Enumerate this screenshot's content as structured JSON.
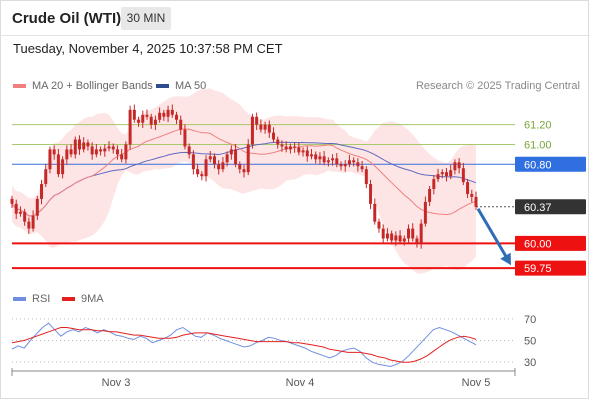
{
  "header": {
    "title": "Crude Oil (WTI)",
    "timeframe": "30 MIN",
    "datetime": "Tuesday, November 4, 2025 10:37:58 PM CET"
  },
  "legend": {
    "ma20": "MA 20 + Bollinger Bands",
    "ma50": "MA 50",
    "rsi": "RSI",
    "rsi_ma": "9MA",
    "copyright": "Research © 2025 Trading Central"
  },
  "colors": {
    "candle": "#c62828",
    "ma20": "#f08080",
    "bollinger_fill": "#fde2e2",
    "ma50": "#5c6bc0",
    "resistance_line": "#a5c96b",
    "pivot_line": "#3a6fd8",
    "support_line": "#ee1111",
    "current_price": "#333333",
    "rsi_line": "#6f8fe0",
    "rsi_ma_line": "#e32020"
  },
  "chart_data": [
    {
      "type": "candlestick",
      "ylim": [
        59.6,
        61.5
      ],
      "x_labels": [
        "Nov 3",
        "Nov 4",
        "Nov 5"
      ],
      "levels": [
        {
          "value": 61.2,
          "label": "61.20",
          "kind": "resistance"
        },
        {
          "value": 61.0,
          "label": "61.00",
          "kind": "resistance"
        },
        {
          "value": 60.8,
          "label": "60.80",
          "kind": "pivot"
        },
        {
          "value": 60.37,
          "label": "60.37",
          "kind": "current"
        },
        {
          "value": 60.0,
          "label": "60.00",
          "kind": "support"
        },
        {
          "value": 59.75,
          "label": "59.75",
          "kind": "support"
        }
      ],
      "forecast_arrow": {
        "from_value": 60.37,
        "to_value": 59.78
      },
      "closes": [
        60.4,
        60.3,
        60.32,
        60.22,
        60.15,
        60.28,
        60.45,
        60.6,
        60.75,
        60.95,
        60.9,
        60.7,
        60.85,
        60.95,
        60.9,
        61.05,
        60.95,
        61.02,
        60.98,
        60.9,
        60.95,
        60.93,
        60.96,
        60.98,
        60.95,
        60.9,
        60.85,
        61.0,
        61.35,
        61.25,
        61.22,
        61.3,
        61.28,
        61.2,
        61.25,
        61.32,
        61.28,
        61.35,
        61.3,
        61.25,
        61.15,
        60.98,
        60.9,
        60.75,
        60.7,
        60.68,
        60.85,
        60.88,
        60.8,
        60.75,
        60.82,
        60.9,
        60.95,
        60.8,
        60.75,
        60.72,
        61.0,
        61.28,
        61.2,
        61.15,
        61.2,
        61.12,
        61.05,
        61.0,
        60.98,
        60.95,
        60.98,
        60.97,
        60.92,
        60.94,
        60.88,
        60.9,
        60.85,
        60.88,
        60.82,
        60.84,
        60.86,
        60.8,
        60.78,
        60.8,
        60.84,
        60.82,
        60.78,
        60.75,
        60.6,
        60.4,
        60.22,
        60.15,
        60.05,
        60.1,
        60.03,
        60.08,
        60.02,
        60.05,
        60.15,
        60.05,
        60.0,
        60.2,
        60.42,
        60.55,
        60.65,
        60.7,
        60.72,
        60.68,
        60.74,
        60.82,
        60.76,
        60.62,
        60.5,
        60.47,
        60.37
      ]
    },
    {
      "type": "line",
      "ylim": [
        20,
        80
      ],
      "y_ticks": [
        70,
        50,
        30
      ],
      "series": [
        {
          "name": "RSI",
          "values": [
            42,
            45,
            43,
            50,
            56,
            62,
            66,
            60,
            54,
            58,
            60,
            58,
            62,
            60,
            57,
            60,
            58,
            55,
            54,
            52,
            51,
            54,
            52,
            48,
            50,
            52,
            55,
            60,
            62,
            58,
            54,
            53,
            57,
            55,
            52,
            50,
            48,
            46,
            44,
            45,
            48,
            50,
            53,
            52,
            50,
            49,
            47,
            45,
            43,
            40,
            38,
            36,
            34,
            36,
            40,
            42,
            43,
            40,
            34,
            30,
            28,
            27,
            26,
            28,
            31,
            36,
            42,
            48,
            54,
            60,
            62,
            60,
            58,
            55,
            52,
            49,
            46
          ]
        },
        {
          "name": "9MA",
          "values": [
            48,
            49,
            50,
            52,
            54,
            56,
            58,
            60,
            62,
            62,
            61,
            60,
            60,
            60,
            59,
            59,
            58,
            58,
            57,
            56,
            55,
            55,
            54,
            53,
            52,
            52,
            52,
            53,
            55,
            56,
            57,
            57,
            57,
            56,
            55,
            54,
            53,
            52,
            51,
            50,
            49,
            49,
            49,
            49,
            49,
            49,
            48,
            48,
            47,
            46,
            45,
            44,
            42,
            41,
            40,
            39,
            39,
            39,
            38,
            37,
            35,
            34,
            32,
            31,
            30,
            30,
            31,
            33,
            36,
            40,
            44,
            48,
            51,
            53,
            54,
            53,
            51
          ]
        }
      ]
    }
  ]
}
